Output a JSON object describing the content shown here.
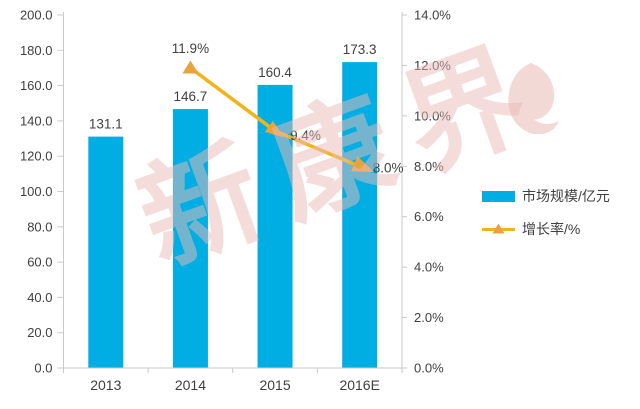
{
  "watermark": {
    "text": "新康界"
  },
  "legend": {
    "items": [
      {
        "label": "市场规模/亿元"
      },
      {
        "label": "增长率/%"
      }
    ]
  },
  "chart_data": {
    "type": "combo",
    "categories": [
      "2013",
      "2014",
      "2015",
      "2016E"
    ],
    "series": [
      {
        "name": "市场规模/亿元",
        "type": "bar",
        "axis": "left",
        "values": [
          131.1,
          146.7,
          160.4,
          173.3
        ],
        "data_labels": [
          "131.1",
          "146.7",
          "160.4",
          "173.3"
        ],
        "color": "#00AEE4"
      },
      {
        "name": "增长率/%",
        "type": "line",
        "axis": "right",
        "values": [
          null,
          11.9,
          9.4,
          8.0
        ],
        "data_labels": [
          null,
          "11.9%",
          "9.4%",
          "8.0%"
        ],
        "color": "#F2B41C",
        "marker_color": "#E8A33D"
      }
    ],
    "left_axis": {
      "min": 0,
      "max": 200,
      "tick_labels": [
        "200.0",
        "180.0",
        "160.0",
        "140.0",
        "120.0",
        "100.0",
        "80.0",
        "60.0",
        "40.0",
        "20.0",
        "0.0"
      ]
    },
    "right_axis": {
      "min": 0,
      "max": 14,
      "tick_labels": [
        "14.0%",
        "12.0%",
        "10.0%",
        "8.0%",
        "6.0%",
        "4.0%",
        "2.0%",
        "0.0%"
      ]
    },
    "grid": false,
    "title": "",
    "legend_position": "right",
    "colors": {
      "axis": "#C9C9C9",
      "text": "#404040",
      "watermark": "#E9B9B5",
      "background": "#FFFFFF"
    }
  }
}
